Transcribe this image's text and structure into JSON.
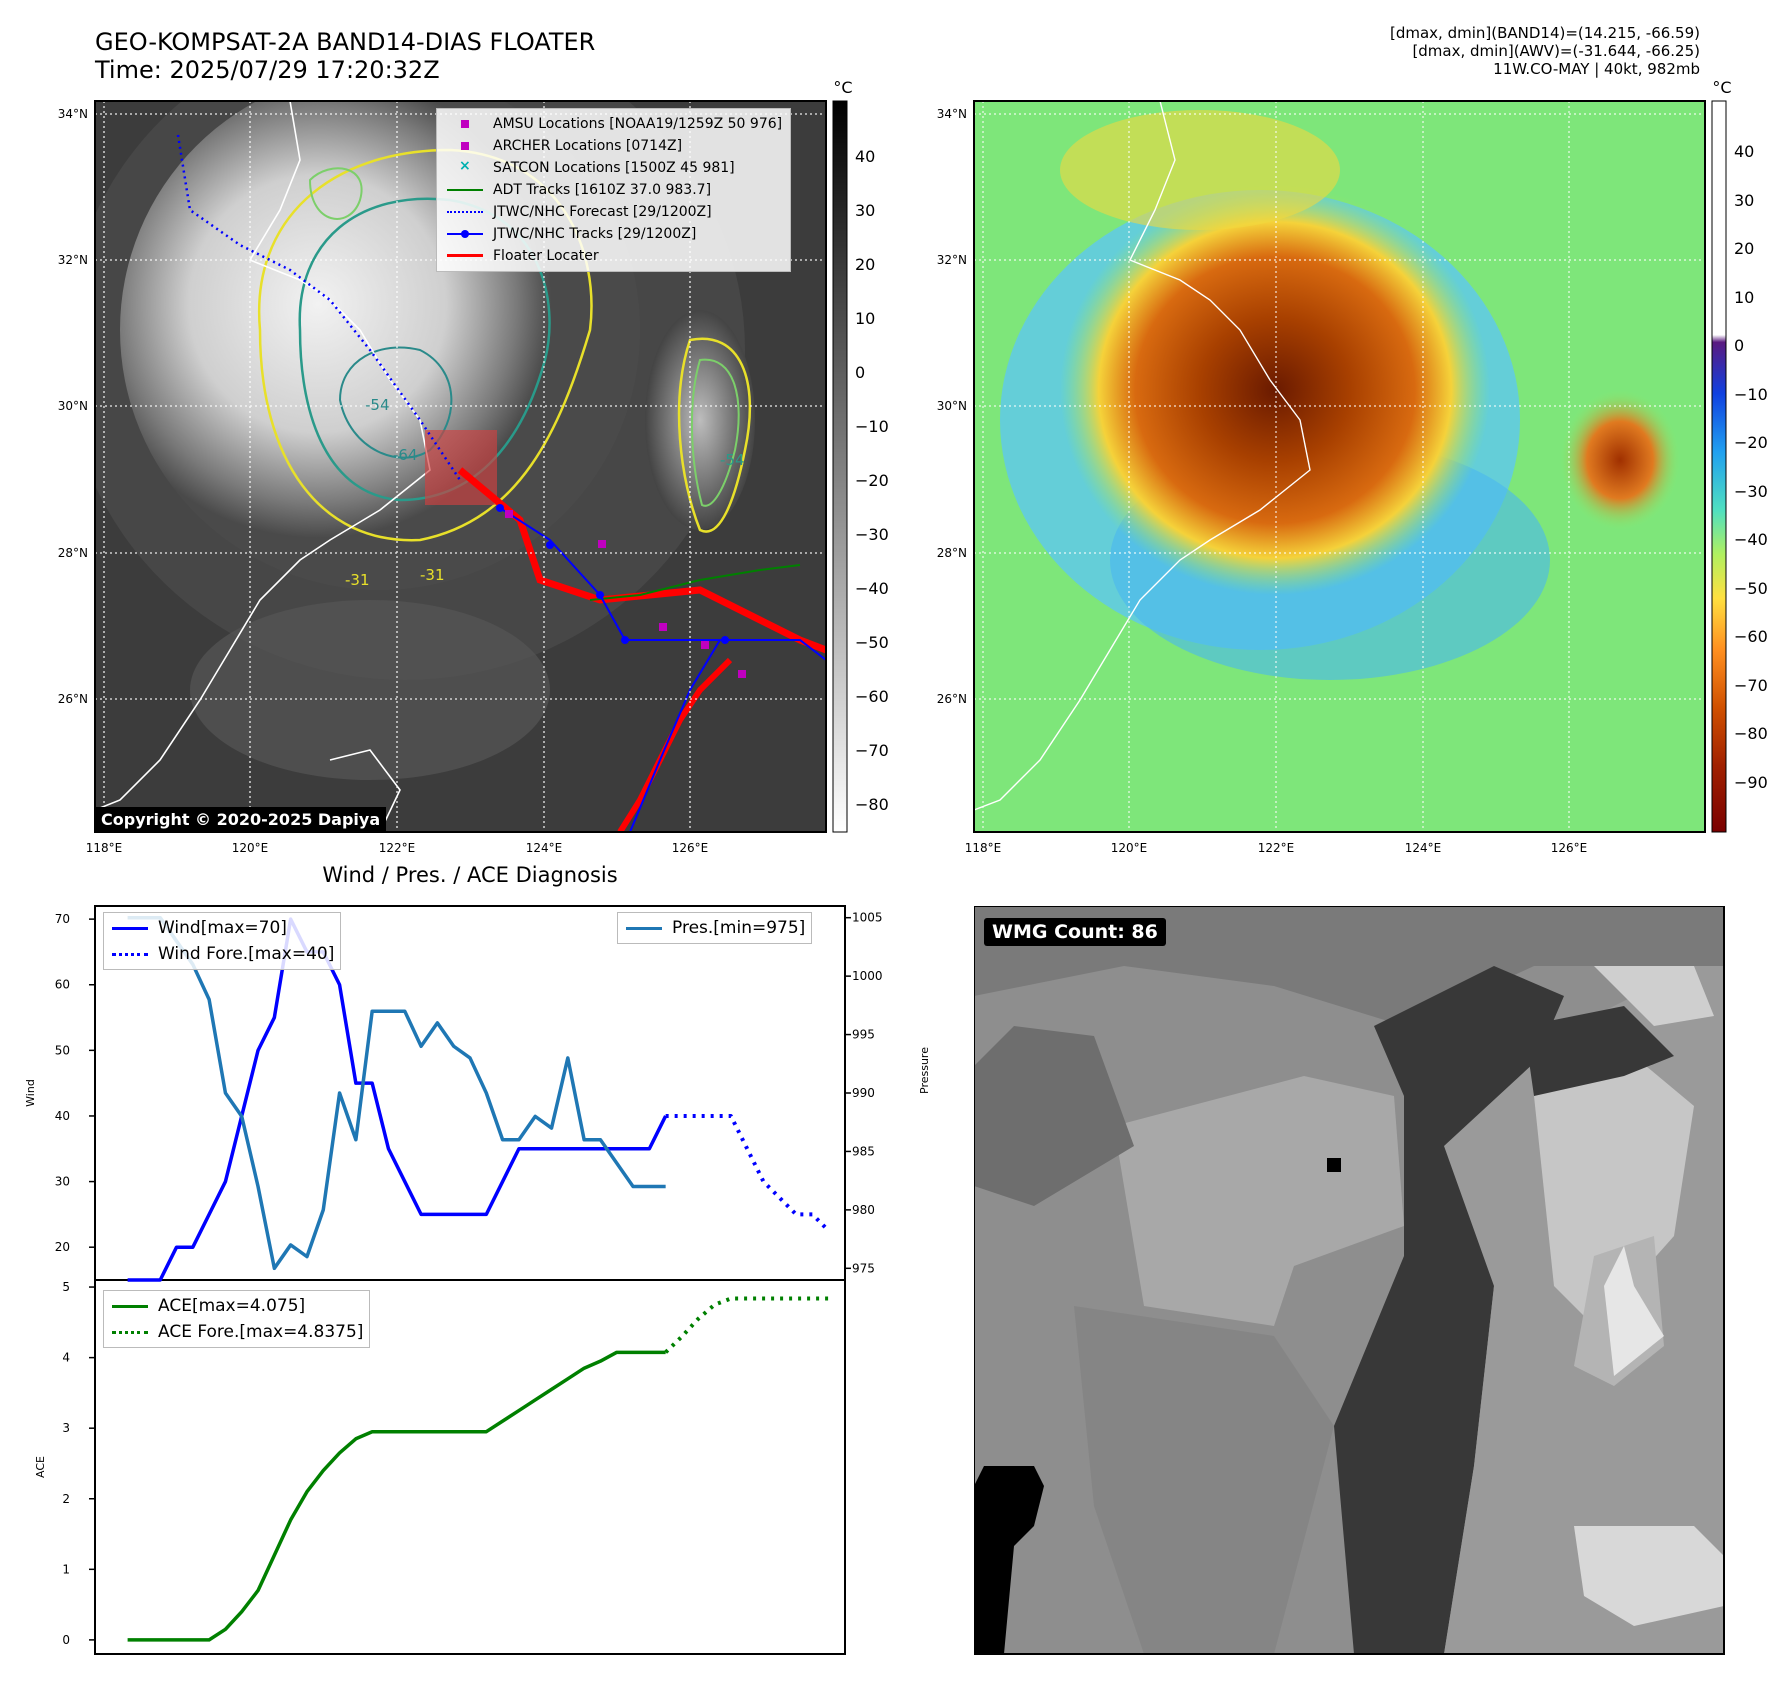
{
  "header": {
    "title_line1": "GEO-KOMPSAT-2A BAND14-DIAS FLOATER",
    "title_line2": "Time: 2025/07/29 17:20:32Z",
    "info_line1": "[dmax, dmin](BAND14)=(14.215, -66.59)",
    "info_line2": "[dmax, dmin](AWV)=(-31.644, -66.25)",
    "info_line3": "11W.CO-MAY | 40kt, 982mb"
  },
  "map_axes": {
    "lat_labels": [
      "34°N",
      "32°N",
      "30°N",
      "28°N",
      "26°N"
    ],
    "lon_labels": [
      "118°E",
      "120°E",
      "122°E",
      "124°E",
      "126°E"
    ]
  },
  "ir_panel": {
    "colorbar_unit": "°C",
    "colorbar_ticks": [
      "40",
      "30",
      "20",
      "10",
      "0",
      "−10",
      "−20",
      "−30",
      "−40",
      "−50",
      "−60",
      "−70",
      "−80"
    ],
    "copyright": "Copyright © 2020-2025 Dapiya",
    "legend": [
      {
        "label": "AMSU Locations [NOAA19/1259Z 50 976]",
        "color": "#c000c0",
        "symbol": "square"
      },
      {
        "label": "ARCHER Locations [0714Z]",
        "color": "#c000c0",
        "symbol": "square"
      },
      {
        "label": "SATCON Locations [1500Z 45 981]",
        "color": "#00b0b0",
        "symbol": "x"
      },
      {
        "label": "ADT Tracks [1610Z 37.0 983.7]",
        "color": "#008000",
        "symbol": "line"
      },
      {
        "label": "JTWC/NHC Forecast [29/1200Z]",
        "color": "#0000ff",
        "symbol": "dotted"
      },
      {
        "label": "JTWC/NHC Tracks [29/1200Z]",
        "color": "#0000ff",
        "symbol": "line-dot"
      },
      {
        "label": "Floater Locater",
        "color": "#ff0000",
        "symbol": "line"
      }
    ],
    "contour_labels": [
      "-31",
      "-31",
      "-54",
      "-64",
      "-54"
    ]
  },
  "awv_panel": {
    "colorbar_unit": "°C",
    "colorbar_ticks": [
      "40",
      "30",
      "20",
      "10",
      "0",
      "−10",
      "−20",
      "−30",
      "−40",
      "−50",
      "−60",
      "−70",
      "−80",
      "−90"
    ]
  },
  "diag": {
    "title": "Wind / Pres. / ACE Diagnosis",
    "wind_ylabel": "Wind",
    "pres_ylabel": "Pressure",
    "ace_ylabel": "ACE",
    "wind_ticks": [
      "70",
      "60",
      "50",
      "40",
      "30",
      "20"
    ],
    "pres_ticks": [
      "1005",
      "1000",
      "995",
      "990",
      "985",
      "980",
      "975"
    ],
    "ace_ticks": [
      "5",
      "4",
      "3",
      "2",
      "1",
      "0"
    ],
    "legend_wind": "Wind[max=70]",
    "legend_wind_fore": "Wind Fore.[max=40]",
    "legend_pres": "Pres.[min=975]",
    "legend_ace": "ACE[max=4.075]",
    "legend_ace_fore": "ACE Fore.[max=4.8375]"
  },
  "wmg_panel": {
    "label": "WMG Count: 86"
  },
  "chart_data": [
    {
      "type": "line",
      "title": "Wind / Pres. / ACE Diagnosis",
      "ylabel": "Wind",
      "ylim": [
        15,
        72
      ],
      "x": [
        0,
        1,
        2,
        3,
        4,
        5,
        6,
        7,
        8,
        9,
        10,
        11,
        12,
        13,
        14,
        15,
        16,
        17,
        18,
        19,
        20,
        21,
        22,
        23,
        24,
        25,
        26,
        27,
        28,
        29,
        30,
        31,
        32,
        33
      ],
      "series": [
        {
          "name": "Wind[max=70]",
          "color": "#0000ff",
          "style": "solid",
          "x": [
            0,
            1,
            2,
            3,
            4,
            5,
            6,
            7,
            8,
            9,
            10,
            11,
            12,
            13,
            14,
            15,
            16,
            17,
            18,
            19,
            20,
            21,
            22,
            23,
            24,
            25,
            26,
            27,
            28,
            29,
            30,
            31,
            32,
            33
          ],
          "values": [
            15,
            15,
            15,
            20,
            20,
            25,
            30,
            40,
            50,
            55,
            70,
            65,
            65,
            60,
            45,
            45,
            35,
            30,
            25,
            25,
            25,
            25,
            25,
            30,
            35,
            35,
            35,
            35,
            35,
            35,
            35,
            35,
            35,
            40
          ]
        },
        {
          "name": "Wind Fore.[max=40]",
          "color": "#0000ff",
          "style": "dotted",
          "x": [
            33,
            34,
            35,
            36,
            37,
            38,
            39,
            40,
            41,
            42,
            43
          ],
          "values": [
            40,
            40,
            40,
            40,
            40,
            35,
            30,
            27.5,
            25,
            25,
            22.5
          ]
        }
      ]
    },
    {
      "type": "line",
      "ylabel": "Pressure",
      "ylim": [
        974,
        1006
      ],
      "series": [
        {
          "name": "Pres.[min=975]",
          "color": "#1f77b4",
          "style": "solid",
          "x": [
            0,
            1,
            2,
            3,
            4,
            5,
            6,
            7,
            8,
            9,
            10,
            11,
            12,
            13,
            14,
            15,
            16,
            17,
            18,
            19,
            20,
            21,
            22,
            23,
            24,
            25,
            26,
            27,
            28,
            29,
            30,
            31,
            32,
            33
          ],
          "values": [
            1005,
            1005,
            1005,
            1003,
            1001,
            998,
            990,
            988,
            982,
            975,
            977,
            976,
            980,
            990,
            986,
            997,
            997,
            997,
            994,
            996,
            994,
            993,
            990,
            986,
            986,
            988,
            987,
            993,
            986,
            986,
            984,
            982,
            982,
            982
          ]
        }
      ]
    },
    {
      "type": "line",
      "ylabel": "ACE",
      "ylim": [
        -0.2,
        5
      ],
      "series": [
        {
          "name": "ACE[max=4.075]",
          "color": "#008000",
          "style": "solid",
          "x": [
            0,
            1,
            2,
            3,
            4,
            5,
            6,
            7,
            8,
            9,
            10,
            11,
            12,
            13,
            14,
            15,
            16,
            17,
            18,
            19,
            20,
            21,
            22,
            23,
            24,
            25,
            26,
            27,
            28,
            29,
            30,
            31,
            32,
            33
          ],
          "values": [
            0,
            0,
            0,
            0,
            0,
            0,
            0.15,
            0.4,
            0.7,
            1.2,
            1.7,
            2.1,
            2.4,
            2.65,
            2.85,
            2.95,
            2.95,
            2.95,
            2.95,
            2.95,
            2.95,
            2.95,
            2.95,
            3.1,
            3.25,
            3.4,
            3.55,
            3.7,
            3.85,
            3.95,
            4.075,
            4.075,
            4.075,
            4.075
          ]
        },
        {
          "name": "ACE Fore.[max=4.8375]",
          "color": "#008000",
          "style": "dotted",
          "x": [
            33,
            34,
            35,
            36,
            37,
            38,
            39,
            40,
            41,
            42,
            43
          ],
          "values": [
            4.075,
            4.3,
            4.55,
            4.75,
            4.8375,
            4.8375,
            4.8375,
            4.8375,
            4.8375,
            4.8375,
            4.8375
          ]
        }
      ]
    }
  ]
}
